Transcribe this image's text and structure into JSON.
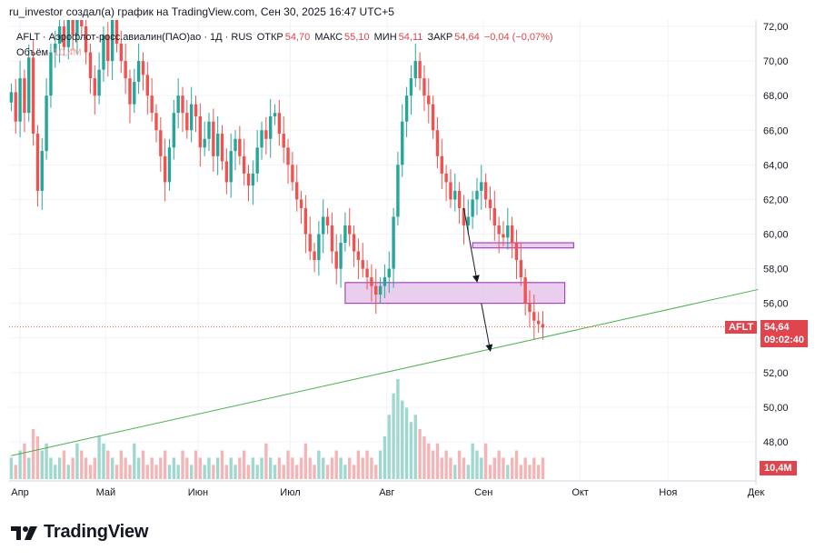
{
  "header": {
    "text": "ru_investor создал(а) график на TradingView.com, Сен 30, 2025 16:47 UTC+5"
  },
  "legend": {
    "symbol": "AFLT · Аэрофлот-росс.авиалин(ПАО)ао · 1Д · RUS",
    "open_label": "ОТКР",
    "open": "54,70",
    "high_label": "МАКС",
    "high": "55,10",
    "low_label": "МИН",
    "low": "54,11",
    "close_label": "ЗАКР",
    "close": "54,64",
    "change": "−0,04 (−0,07%)",
    "volume_label": "Объём",
    "volume_value": "10,4M"
  },
  "price_tag": {
    "symbol": "AFLT",
    "price": "54,64",
    "timer": "09:02:40"
  },
  "volume_tag": "10,4M",
  "brand": "TradingView",
  "colors": {
    "up": "#26a69a",
    "down": "#ef5350",
    "trend": "#4caf50",
    "zone_fill": "#e1bee7",
    "zone_stroke": "#9c27b0",
    "tag": "#e0444d"
  },
  "chart_data": {
    "type": "candlestick",
    "y_ticks": [
      "72,00",
      "70,00",
      "68,00",
      "66,00",
      "64,00",
      "62,00",
      "60,00",
      "58,00",
      "56,00",
      "54,00",
      "52,00",
      "50,00",
      "48,00"
    ],
    "ylim": [
      47,
      72
    ],
    "x_ticks": [
      "Апр",
      "Май",
      "Июн",
      "Июл",
      "Авг",
      "Сен",
      "Окт",
      "Ноя",
      "Дек"
    ],
    "close_series": [
      68.2,
      66.5,
      69.0,
      67.0,
      70.2,
      65.8,
      62.5,
      64.8,
      68.0,
      70.5,
      71.0,
      72.0,
      70.8,
      72.5,
      71.5,
      73.0,
      72.0,
      70.5,
      69.0,
      68.0,
      69.5,
      71.5,
      70.0,
      72.5,
      71.0,
      70.0,
      69.0,
      67.5,
      68.8,
      70.0,
      69.2,
      68.0,
      67.0,
      66.0,
      64.5,
      63.0,
      65.0,
      67.0,
      68.0,
      67.0,
      66.0,
      67.5,
      66.8,
      65.0,
      65.5,
      66.5,
      64.5,
      65.8,
      64.2,
      63.0,
      64.8,
      65.5,
      64.5,
      63.5,
      62.8,
      63.5,
      65.0,
      66.0,
      65.5,
      66.8,
      67.0,
      65.8,
      65.0,
      64.0,
      63.0,
      62.0,
      61.5,
      60.0,
      59.0,
      58.5,
      60.0,
      61.0,
      60.5,
      59.0,
      58.0,
      59.5,
      60.5,
      60.0,
      59.0,
      58.5,
      58.0,
      57.5,
      57.0,
      56.5,
      57.0,
      57.5,
      58.0,
      61.0,
      64.0,
      66.5,
      68.0,
      69.0,
      70.0,
      69.0,
      68.0,
      67.5,
      66.0,
      64.5,
      63.5,
      63.0,
      62.0,
      62.5,
      61.5,
      60.5,
      61.0,
      62.0,
      62.5,
      63.0,
      62.0,
      61.5,
      60.5,
      60.0,
      59.8,
      60.5,
      59.5,
      58.5,
      57.5,
      56.0,
      55.5,
      55.0,
      54.8,
      54.6
    ],
    "volumes": [
      3,
      2,
      4,
      5,
      3,
      7,
      6,
      4,
      5,
      3,
      2,
      3,
      4,
      2,
      3,
      5,
      4,
      3,
      2,
      3,
      6,
      5,
      4,
      3,
      2,
      4,
      3,
      2,
      5,
      3,
      4,
      2,
      3,
      2,
      3,
      4,
      2,
      3,
      2,
      4,
      3,
      2,
      4,
      3,
      2,
      3,
      2,
      3,
      4,
      2,
      3,
      2,
      3,
      4,
      2,
      3,
      2,
      3,
      5,
      3,
      2,
      3,
      2,
      4,
      3,
      2,
      3,
      5,
      3,
      2,
      4,
      3,
      2,
      3,
      4,
      3,
      2,
      3,
      2,
      4,
      3,
      4,
      3,
      2,
      4,
      6,
      9,
      12,
      14,
      11,
      10,
      8,
      9,
      7,
      6,
      5,
      4,
      5,
      3,
      4,
      3,
      2,
      4,
      3,
      2,
      5,
      4,
      3,
      5,
      2,
      3,
      4,
      3,
      2,
      3,
      4,
      2,
      3,
      2,
      3,
      2,
      3
    ],
    "zones": [
      {
        "top": 57.2,
        "bottom": 56.0,
        "start_index": 76,
        "end_index": 126
      },
      {
        "top": 59.5,
        "bottom": 59.2,
        "start_index": 105,
        "end_index": 128
      }
    ],
    "trendline": {
      "from_index": 0,
      "from_value": 47.2,
      "to_index": 170,
      "to_value": 56.8
    },
    "last_price": 54.64
  }
}
